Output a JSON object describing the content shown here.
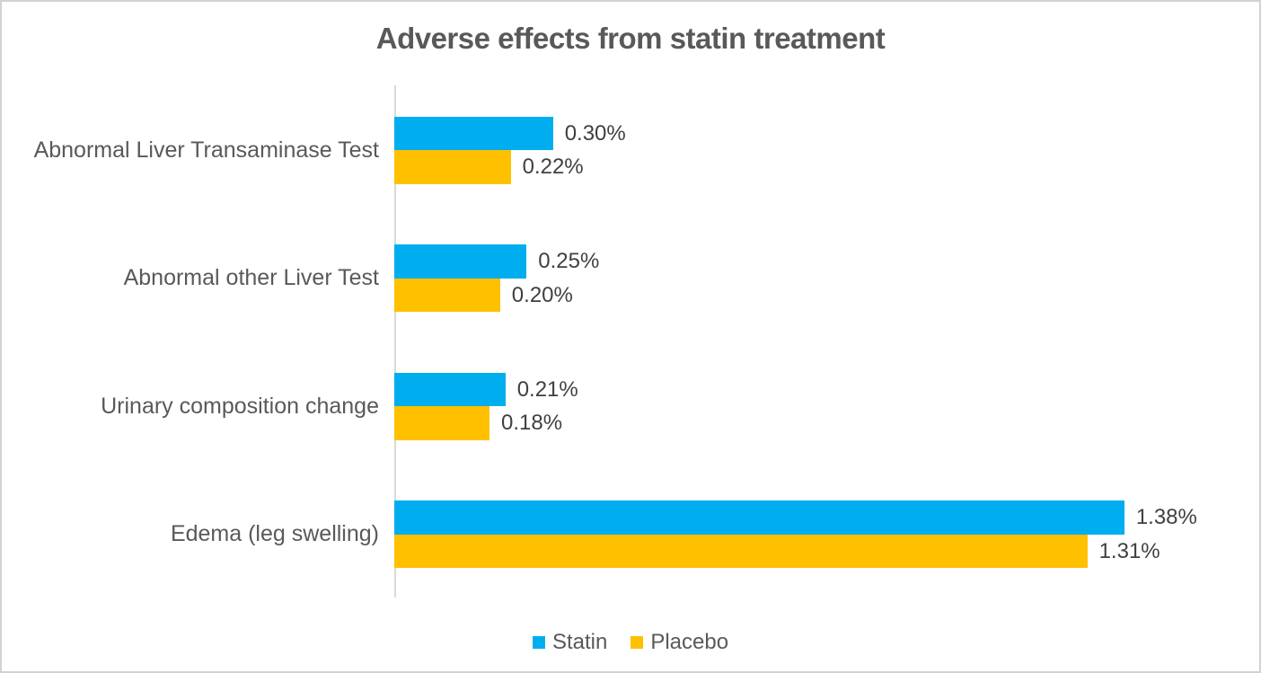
{
  "chart_data": {
    "type": "bar",
    "orientation": "horizontal",
    "title": "Adverse effects from statin treatment",
    "categories": [
      "Abnormal Liver Transaminase Test",
      "Abnormal other Liver Test",
      "Urinary composition change",
      "Edema (leg swelling)"
    ],
    "series": [
      {
        "name": "Statin",
        "color": "#00AEEF",
        "values": [
          0.3,
          0.25,
          0.21,
          1.38
        ],
        "data_labels": [
          "0.30%",
          "0.25%",
          "0.21%",
          "1.38%"
        ]
      },
      {
        "name": "Placebo",
        "color": "#FFC000",
        "values": [
          0.22,
          0.2,
          0.18,
          1.31
        ],
        "data_labels": [
          "0.22%",
          "0.20%",
          "0.18%",
          "1.31%"
        ]
      }
    ],
    "xlim": [
      0,
      1.55
    ],
    "grid": false,
    "data_labels_shown": true,
    "legend_position": "bottom",
    "axis_line_color": "#D9D9D9",
    "title_color": "#595959",
    "category_label_color": "#595959",
    "value_label_color": "#404040"
  }
}
